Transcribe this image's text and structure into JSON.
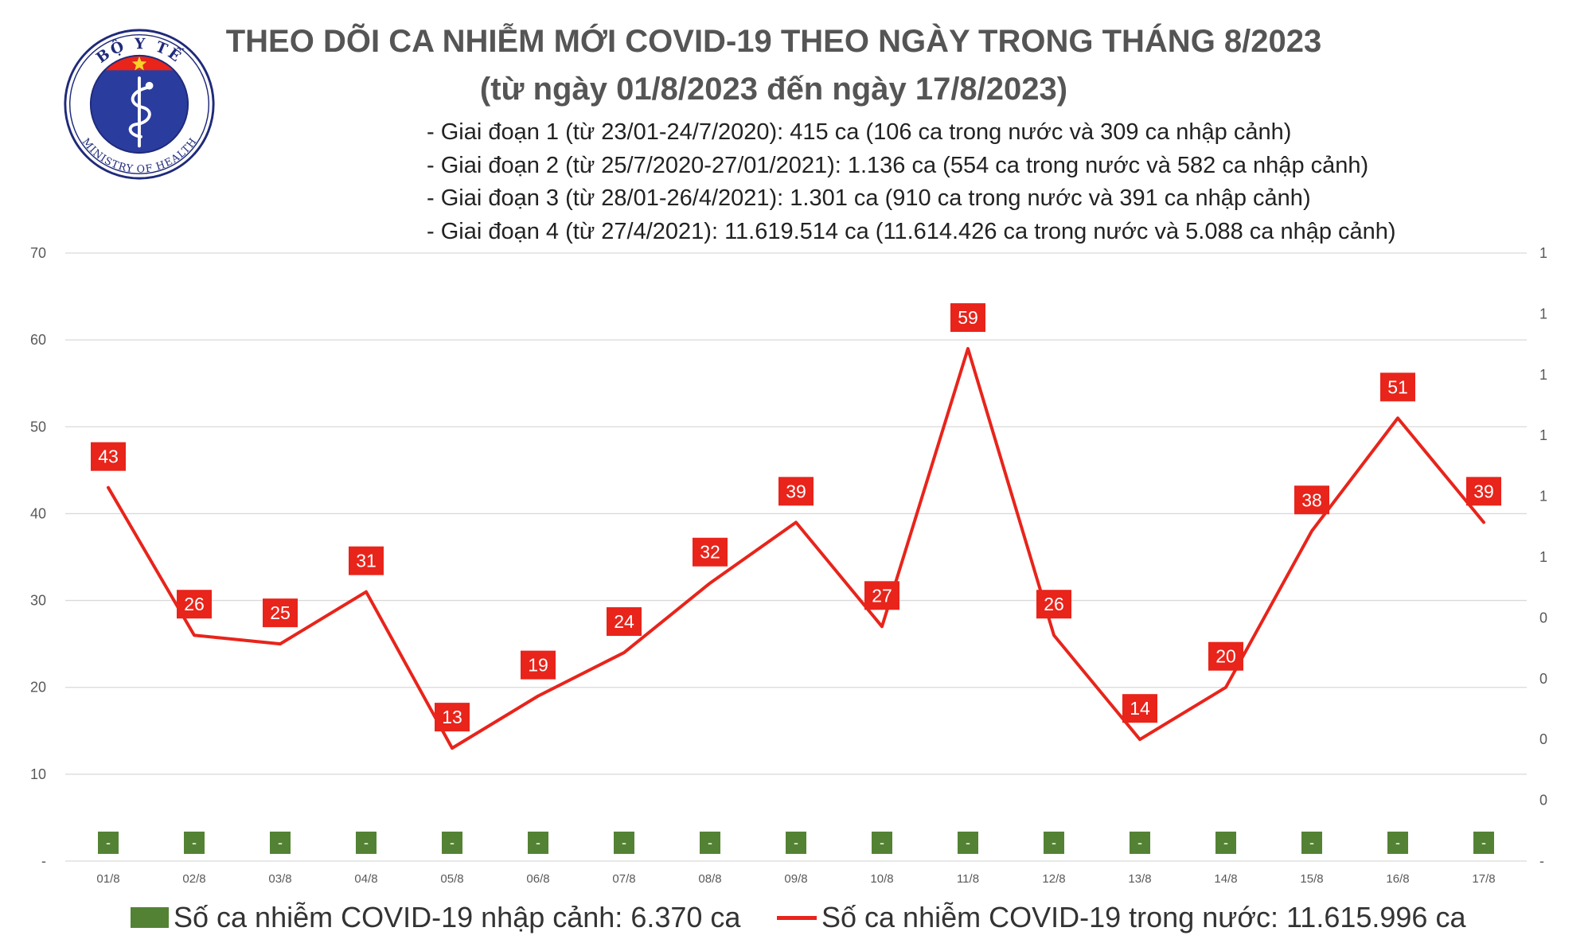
{
  "logo": {
    "top_text": "BỘ Y TẾ",
    "bottom_text": "MINISTRY OF HEALTH",
    "colors": {
      "ring": "#1f2a7a",
      "field": "#2a3d9e",
      "band": "#e8241b",
      "star": "#f7d32a"
    }
  },
  "header": {
    "title": "THEO DÕI CA NHIỄM MỚI COVID-19 THEO NGÀY TRONG THÁNG 8/2023",
    "subtitle": "(từ ngày 01/8/2023 đến ngày 17/8/2023)"
  },
  "stages": [
    "- Giai đoạn 1 (từ 23/01-24/7/2020): 415 ca (106 ca trong nước và 309 ca nhập cảnh)",
    "- Giai đoạn 2 (từ 25/7/2020-27/01/2021): 1.136 ca (554 ca trong nước và 582 ca nhập cảnh)",
    "- Giai đoạn 3 (từ 28/01-26/4/2021): 1.301 ca (910 ca trong nước và 391 ca nhập cảnh)",
    "- Giai đoạn 4 (từ 27/4/2021): 11.619.514 ca (11.614.426 ca trong nước và 5.088 ca nhập cảnh)"
  ],
  "chart_data": {
    "type": "line",
    "categories": [
      "01/8",
      "02/8",
      "03/8",
      "04/8",
      "05/8",
      "06/8",
      "07/8",
      "08/8",
      "09/8",
      "10/8",
      "11/8",
      "12/8",
      "13/8",
      "14/8",
      "15/8",
      "16/8",
      "17/8"
    ],
    "series": [
      {
        "name": "Số ca nhiễm COVID-19 trong nước: 11.615.996 ca",
        "type": "line",
        "axis": "left",
        "values": [
          43,
          26,
          25,
          31,
          13,
          19,
          24,
          32,
          39,
          27,
          59,
          26,
          14,
          20,
          38,
          51,
          39
        ],
        "labels": [
          "43",
          "26",
          "25",
          "31",
          "13",
          "19",
          "24",
          "32",
          "39",
          "27",
          "59",
          "26",
          "14",
          "20",
          "38",
          "51",
          "39"
        ]
      },
      {
        "name": "Số ca nhiễm COVID-19 nhập cảnh: 6.370 ca",
        "type": "bar",
        "axis": "right",
        "values": [
          0,
          0,
          0,
          0,
          0,
          0,
          0,
          0,
          0,
          0,
          0,
          0,
          0,
          0,
          0,
          0,
          0
        ],
        "labels": [
          "-",
          "-",
          "-",
          "-",
          "-",
          "-",
          "-",
          "-",
          "-",
          "-",
          "-",
          "-",
          "-",
          "-",
          "-",
          "-",
          "-"
        ]
      }
    ],
    "y_left": {
      "ylim": [
        0,
        70
      ],
      "ticks": [
        "-",
        "10",
        "20",
        "30",
        "40",
        "50",
        "60",
        "70"
      ]
    },
    "y_right": {
      "tick_labels": [
        "-",
        "0",
        "0",
        "0",
        "0",
        "1",
        "1",
        "1",
        "1",
        "1",
        "1"
      ]
    },
    "grid": true,
    "legend_position": "bottom",
    "colors": {
      "line": "#e8241b",
      "bar": "#548235",
      "grid": "#d9d9d9",
      "axis_text": "#595959"
    }
  }
}
